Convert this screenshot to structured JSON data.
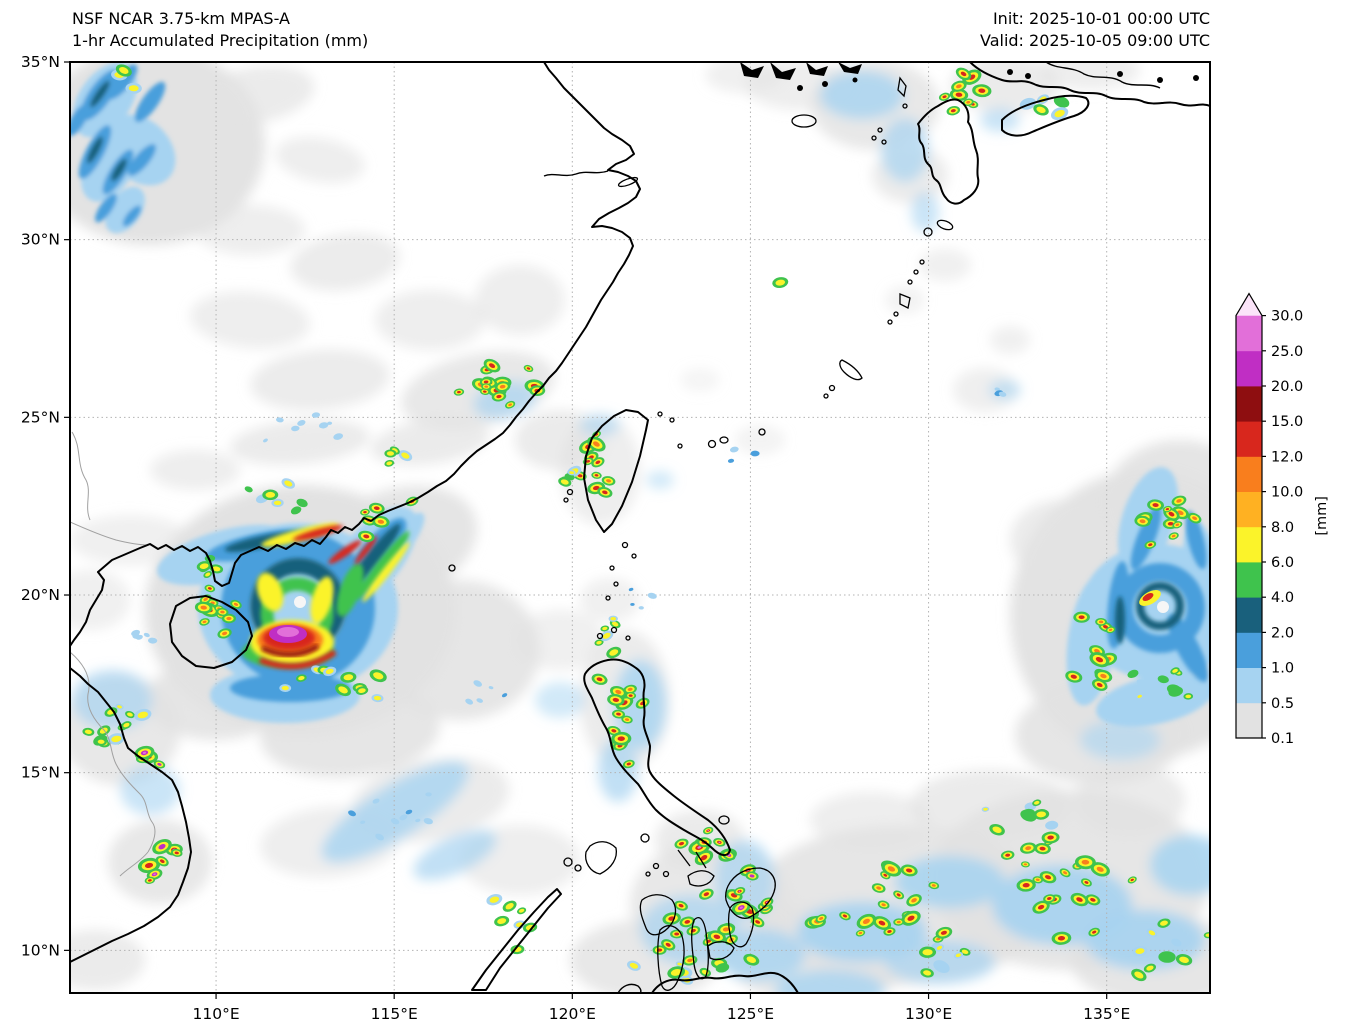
{
  "header": {
    "model_line1": "NSF NCAR 3.75-km MPAS-A",
    "model_line2": "1-hr Accumulated Precipitation (mm)",
    "init_label": "Init: 2025-10-01 00:00 UTC",
    "valid_label": "Valid: 2025-10-05 09:00 UTC"
  },
  "chart_data": {
    "type": "heatmap",
    "description": "Regional weather model 1-hour accumulated precipitation map over East Asia, South China Sea and Philippine Sea with two tropical cyclones",
    "x_axis": {
      "range": [
        105.9,
        137.9
      ],
      "ticks": [
        110,
        115,
        120,
        125,
        130,
        135
      ],
      "tick_labels": [
        "110°E",
        "115°E",
        "120°E",
        "125°E",
        "130°E",
        "135°E"
      ]
    },
    "y_axis": {
      "range": [
        8.8,
        35.0
      ],
      "ticks": [
        35,
        30,
        25,
        20,
        15,
        10
      ],
      "tick_labels": [
        "35°N",
        "30°N",
        "25°N",
        "20°N",
        "15°N",
        "10°N"
      ]
    },
    "colorbar": {
      "unit_label": "[mm]",
      "levels": [
        0.1,
        0.5,
        1.0,
        2.0,
        4.0,
        6.0,
        8.0,
        10.0,
        12.0,
        15.0,
        20.0,
        25.0,
        30.0
      ],
      "tick_labels": [
        "0.1",
        "0.5",
        "1.0",
        "2.0",
        "4.0",
        "6.0",
        "8.0",
        "10.0",
        "12.0",
        "15.0",
        "20.0",
        "25.0",
        "30.0"
      ],
      "segment_colors": [
        "gray",
        "lightblue",
        "blue",
        "teal",
        "green",
        "yellow",
        "orange",
        "darkorange",
        "red",
        "darkred",
        "magenta",
        "pinkmagenta"
      ],
      "over_color": "over"
    },
    "palette": {
      "gray": "#e2e2e2",
      "lightblue": "#a6d3f1",
      "blue": "#4a9fdc",
      "teal": "#19607c",
      "green": "#3fc34d",
      "yellow": "#fbf32a",
      "orange": "#ffb122",
      "darkorange": "#f97e1d",
      "red": "#d8271d",
      "darkred": "#8e0e10",
      "magenta": "#c02ec4",
      "pinkmagenta": "#e26fd9",
      "over": "#fbe4f9",
      "eye": "#f6f6f6",
      "coast": "#000000",
      "border": "#a0a0a0",
      "grid": "#b3b3b3"
    },
    "features": {
      "tropical_cyclone_west": {
        "approx_center_lon": 112.4,
        "approx_center_lat": 19.6
      },
      "tropical_cyclone_east": {
        "approx_center_lon": 136.8,
        "approx_center_lat": 19.7
      }
    },
    "patch_format": [
      "x",
      "y",
      "rx",
      "ry",
      "opacity",
      "color",
      "rot"
    ],
    "soft_patches": [
      [
        150,
        145,
        115,
        100,
        0.95,
        "gray",
        0
      ],
      [
        255,
        95,
        60,
        28,
        0.7,
        "gray",
        -10
      ],
      [
        320,
        160,
        45,
        22,
        0.6,
        "gray",
        10
      ],
      [
        250,
        230,
        55,
        25,
        0.6,
        "gray",
        0
      ],
      [
        345,
        262,
        55,
        28,
        0.65,
        "gray",
        -8
      ],
      [
        250,
        320,
        60,
        28,
        0.6,
        "gray",
        5
      ],
      [
        320,
        380,
        70,
        30,
        0.65,
        "gray",
        -5
      ],
      [
        430,
        320,
        55,
        30,
        0.6,
        "gray",
        0
      ],
      [
        520,
        300,
        45,
        35,
        0.6,
        "gray",
        0
      ],
      [
        478,
        390,
        78,
        36,
        0.8,
        "gray",
        -12
      ],
      [
        560,
        440,
        45,
        30,
        0.7,
        "gray",
        0
      ],
      [
        430,
        442,
        60,
        22,
        0.7,
        "gray",
        -8
      ],
      [
        300,
        442,
        70,
        22,
        0.7,
        "gray",
        -5
      ],
      [
        195,
        470,
        45,
        20,
        0.6,
        "gray",
        0
      ],
      [
        300,
        610,
        155,
        125,
        1,
        "gray",
        0
      ],
      [
        395,
        545,
        85,
        55,
        0.9,
        "gray",
        -20
      ],
      [
        460,
        650,
        80,
        70,
        0.85,
        "gray",
        0
      ],
      [
        350,
        732,
        90,
        45,
        0.85,
        "gray",
        -5
      ],
      [
        215,
        700,
        70,
        40,
        0.85,
        "gray",
        0
      ],
      [
        430,
        800,
        80,
        40,
        0.7,
        "gray",
        -10
      ],
      [
        330,
        842,
        70,
        35,
        0.6,
        "gray",
        -5
      ],
      [
        520,
        860,
        60,
        35,
        0.6,
        "gray",
        0
      ],
      [
        120,
        730,
        60,
        55,
        0.8,
        "gray",
        0
      ],
      [
        160,
        862,
        52,
        42,
        0.8,
        "gray",
        0
      ],
      [
        95,
        960,
        50,
        30,
        0.7,
        "gray",
        0
      ],
      [
        875,
        105,
        65,
        45,
        0.8,
        "gray",
        0
      ],
      [
        910,
        175,
        38,
        28,
        0.7,
        "gray",
        0
      ],
      [
        1005,
        85,
        55,
        28,
        0.7,
        "gray",
        0
      ],
      [
        1090,
        70,
        50,
        20,
        0.6,
        "gray",
        0
      ],
      [
        800,
        85,
        55,
        25,
        0.6,
        "gray",
        0
      ],
      [
        985,
        390,
        32,
        22,
        0.55,
        "gray",
        0
      ],
      [
        945,
        265,
        26,
        16,
        0.5,
        "gray",
        0
      ],
      [
        1010,
        340,
        20,
        14,
        0.5,
        "gray",
        0
      ],
      [
        1145,
        615,
        135,
        145,
        0.95,
        "gray",
        0
      ],
      [
        1100,
        735,
        85,
        50,
        0.85,
        "gray",
        0
      ],
      [
        1180,
        500,
        75,
        60,
        0.9,
        "gray",
        0
      ],
      [
        1060,
        540,
        50,
        40,
        0.7,
        "gray",
        0
      ],
      [
        900,
        905,
        150,
        80,
        0.85,
        "gray",
        0
      ],
      [
        1070,
        880,
        140,
        90,
        0.85,
        "gray",
        0
      ],
      [
        1160,
        960,
        90,
        45,
        0.85,
        "gray",
        0
      ],
      [
        820,
        955,
        95,
        50,
        0.8,
        "gray",
        0
      ],
      [
        710,
        905,
        80,
        65,
        0.8,
        "gray",
        0
      ],
      [
        645,
        960,
        75,
        40,
        0.8,
        "gray",
        0
      ],
      [
        990,
        805,
        80,
        35,
        0.7,
        "gray",
        0
      ],
      [
        1130,
        800,
        55,
        35,
        0.7,
        "gray",
        0
      ],
      [
        870,
        820,
        60,
        28,
        0.6,
        "gray",
        0
      ],
      [
        625,
        700,
        45,
        70,
        0.7,
        "gray",
        0
      ],
      [
        700,
        840,
        45,
        30,
        0.7,
        "gray",
        0
      ],
      [
        600,
        470,
        40,
        55,
        0.6,
        "gray",
        0
      ],
      [
        560,
        640,
        45,
        30,
        0.5,
        "gray",
        0
      ],
      [
        610,
        600,
        30,
        22,
        0.5,
        "gray",
        0
      ],
      [
        745,
        75,
        40,
        18,
        0.5,
        "gray",
        0
      ],
      [
        905,
        300,
        20,
        14,
        0.45,
        "gray",
        0
      ],
      [
        760,
        440,
        25,
        15,
        0.4,
        "gray",
        0
      ],
      [
        700,
        380,
        20,
        12,
        0.35,
        "gray",
        0
      ],
      [
        130,
        540,
        60,
        25,
        0.5,
        "gray",
        0
      ],
      [
        90,
        600,
        40,
        30,
        0.5,
        "gray",
        0
      ],
      [
        862,
        932,
        65,
        30,
        0.9,
        "lightblue",
        0
      ],
      [
        950,
        882,
        55,
        26,
        0.85,
        "lightblue",
        0
      ],
      [
        1062,
        905,
        70,
        40,
        0.9,
        "lightblue",
        0
      ],
      [
        1145,
        940,
        60,
        30,
        0.9,
        "lightblue",
        0
      ],
      [
        1190,
        865,
        40,
        30,
        0.85,
        "lightblue",
        0
      ],
      [
        760,
        955,
        45,
        26,
        0.8,
        "lightblue",
        0
      ],
      [
        830,
        990,
        55,
        20,
        0.8,
        "lightblue",
        0
      ],
      [
        395,
        812,
        85,
        26,
        0.8,
        "lightblue",
        -32
      ],
      [
        455,
        855,
        45,
        18,
        0.7,
        "lightblue",
        -25
      ],
      [
        640,
        705,
        26,
        45,
        0.8,
        "lightblue",
        0
      ],
      [
        618,
        770,
        20,
        32,
        0.7,
        "lightblue",
        0
      ],
      [
        505,
        400,
        32,
        18,
        0.7,
        "lightblue",
        -12
      ],
      [
        862,
        95,
        42,
        24,
        0.8,
        "lightblue",
        0
      ],
      [
        905,
        150,
        24,
        32,
        0.7,
        "lightblue",
        0
      ],
      [
        925,
        212,
        14,
        20,
        0.6,
        "lightblue",
        0
      ],
      [
        1000,
        120,
        20,
        12,
        0.6,
        "lightblue",
        0
      ],
      [
        600,
        425,
        20,
        11,
        0.6,
        "lightblue",
        0
      ],
      [
        660,
        480,
        14,
        9,
        0.5,
        "lightblue",
        0
      ],
      [
        1005,
        390,
        16,
        10,
        0.6,
        "lightblue",
        0
      ],
      [
        112,
        700,
        40,
        30,
        0.7,
        "lightblue",
        0
      ],
      [
        150,
        790,
        30,
        25,
        0.6,
        "lightblue",
        0
      ],
      [
        560,
        700,
        25,
        18,
        0.5,
        "lightblue",
        0
      ],
      [
        690,
        930,
        50,
        35,
        0.7,
        "lightblue",
        0
      ],
      [
        745,
        880,
        30,
        40,
        0.7,
        "lightblue",
        0
      ],
      [
        940,
        962,
        55,
        22,
        0.7,
        "lightblue",
        0
      ],
      [
        1120,
        740,
        40,
        20,
        0.6,
        "lightblue",
        0
      ]
    ],
    "cluster_format": [
      "name",
      "x",
      "y",
      "rx",
      "ry",
      "n",
      "tier",
      "seed"
    ],
    "convective_clusters": [
      [
        "fujian-coast",
        495,
        385,
        50,
        28,
        16,
        "high",
        11
      ],
      [
        "guangdong-inland",
        310,
        430,
        70,
        20,
        8,
        "low",
        12
      ],
      [
        "taiwan",
        598,
        468,
        20,
        38,
        11,
        "high",
        13
      ],
      [
        "taiwan-strait",
        566,
        482,
        10,
        18,
        5,
        "mid",
        14
      ],
      [
        "hainan-east",
        222,
        608,
        26,
        34,
        12,
        "high",
        15
      ],
      [
        "leizhou",
        208,
        566,
        16,
        14,
        5,
        "mid",
        16
      ],
      [
        "vietnam-central",
        125,
        722,
        42,
        50,
        13,
        "mid",
        17
      ],
      [
        "vietnam-central-core",
        148,
        760,
        18,
        12,
        4,
        "extreme",
        18
      ],
      [
        "vietnam-south",
        165,
        860,
        26,
        26,
        7,
        "extreme",
        19
      ],
      [
        "scs-band",
        400,
        815,
        65,
        26,
        10,
        "low",
        20
      ],
      [
        "luzon",
        624,
        716,
        26,
        55,
        15,
        "high",
        21
      ],
      [
        "luzon-north",
        618,
        640,
        20,
        28,
        6,
        "mid",
        22
      ],
      [
        "bicol",
        705,
        845,
        28,
        22,
        9,
        "extreme",
        23
      ],
      [
        "visayas",
        688,
        922,
        62,
        45,
        16,
        "high",
        24
      ],
      [
        "samar-east",
        757,
        897,
        22,
        38,
        9,
        "extreme",
        25
      ],
      [
        "mindanao-coast",
        700,
        972,
        75,
        18,
        9,
        "mid",
        26
      ],
      [
        "palawan",
        520,
        928,
        45,
        35,
        7,
        "mid",
        27
      ],
      [
        "se-field-west",
        878,
        900,
        85,
        65,
        22,
        "high",
        28
      ],
      [
        "se-field-east",
        1062,
        888,
        85,
        75,
        22,
        "high",
        29
      ],
      [
        "se-field-far",
        1168,
        950,
        55,
        38,
        10,
        "mid",
        30
      ],
      [
        "se-field-north",
        1000,
        812,
        60,
        28,
        8,
        "mid",
        31
      ],
      [
        "east-tc-north",
        1163,
        520,
        42,
        32,
        13,
        "high",
        32
      ],
      [
        "east-tc-west",
        1098,
        645,
        26,
        50,
        11,
        "high",
        33
      ],
      [
        "east-tc-south",
        1160,
        688,
        42,
        30,
        9,
        "mid",
        34
      ],
      [
        "kyushu-west",
        966,
        95,
        26,
        26,
        9,
        "high",
        35
      ],
      [
        "japan-inland-sea",
        1040,
        110,
        24,
        14,
        6,
        "mid",
        36
      ],
      [
        "ryukyu-sparse",
        988,
        392,
        18,
        12,
        3,
        "low",
        37
      ],
      [
        "lone-cell",
        778,
        283,
        4,
        3,
        1,
        "mid",
        38
      ],
      [
        "nw-china-bits",
        122,
        80,
        16,
        12,
        3,
        "mid",
        39
      ],
      [
        "se-deep",
        940,
        958,
        55,
        22,
        7,
        "mid",
        40
      ],
      [
        "east-sea-flecks",
        745,
        450,
        28,
        20,
        3,
        "low",
        41
      ],
      [
        "bashi-flecks",
        640,
        600,
        25,
        15,
        4,
        "low",
        42
      ],
      [
        "mid-scs-flecks",
        480,
        700,
        40,
        30,
        5,
        "low",
        43
      ],
      [
        "west-tc-outer-band",
        360,
        690,
        50,
        20,
        6,
        "mid",
        44
      ],
      [
        "guangdong-coast-cells",
        280,
        500,
        50,
        18,
        7,
        "mid",
        45
      ],
      [
        "hongkong-east-band",
        390,
        460,
        30,
        14,
        4,
        "mid",
        46
      ],
      [
        "west-tc-ne-band",
        380,
        520,
        40,
        25,
        6,
        "high",
        47
      ],
      [
        "west-tc-south-rim",
        300,
        680,
        45,
        15,
        5,
        "mid",
        48
      ],
      [
        "tonkin-flecks",
        140,
        640,
        30,
        25,
        5,
        "low",
        49
      ]
    ]
  }
}
